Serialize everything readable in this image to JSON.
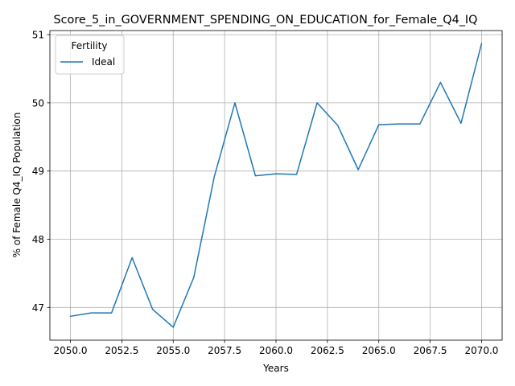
{
  "chart_data": {
    "type": "line",
    "title": "Score_5_in_GOVERNMENT_SPENDING_ON_EDUCATION_for_Female_Q4_IQ",
    "xlabel": "Years",
    "ylabel": "% of Female Q4_IQ Population",
    "xlim": [
      2049.0,
      2071.0
    ],
    "ylim": [
      46.52,
      51.06
    ],
    "xticks": [
      2050.0,
      2052.5,
      2055.0,
      2057.5,
      2060.0,
      2062.5,
      2065.0,
      2067.5,
      2070.0
    ],
    "xtick_labels": [
      "2050.0",
      "2052.5",
      "2055.0",
      "2057.5",
      "2060.0",
      "2062.5",
      "2065.0",
      "2067.5",
      "2070.0"
    ],
    "yticks": [
      47,
      48,
      49,
      50,
      51
    ],
    "ytick_labels": [
      "47",
      "48",
      "49",
      "50",
      "51"
    ],
    "grid": true,
    "legend": {
      "title": "Fertility",
      "position": "top-left"
    },
    "series": [
      {
        "name": "Ideal",
        "color": "#1f77b4",
        "x": [
          2050,
          2051,
          2052,
          2053,
          2054,
          2055,
          2056,
          2057,
          2058,
          2059,
          2060,
          2061,
          2062,
          2063,
          2064,
          2065,
          2066,
          2067,
          2068,
          2069,
          2070
        ],
        "y": [
          46.87,
          46.92,
          46.92,
          47.73,
          46.97,
          46.71,
          47.44,
          48.92,
          50.0,
          48.93,
          48.96,
          48.95,
          50.0,
          49.67,
          49.02,
          49.68,
          49.69,
          49.69,
          50.3,
          49.7,
          50.87
        ]
      }
    ]
  }
}
